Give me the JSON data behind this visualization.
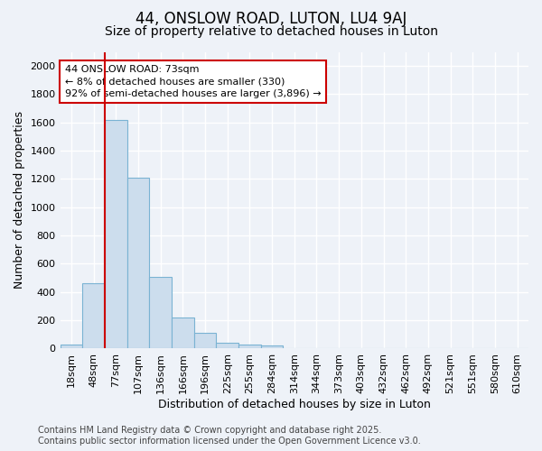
{
  "title": "44, ONSLOW ROAD, LUTON, LU4 9AJ",
  "subtitle": "Size of property relative to detached houses in Luton",
  "xlabel": "Distribution of detached houses by size in Luton",
  "ylabel": "Number of detached properties",
  "categories": [
    "18sqm",
    "48sqm",
    "77sqm",
    "107sqm",
    "136sqm",
    "166sqm",
    "196sqm",
    "225sqm",
    "255sqm",
    "284sqm",
    "314sqm",
    "344sqm",
    "373sqm",
    "403sqm",
    "432sqm",
    "462sqm",
    "492sqm",
    "521sqm",
    "551sqm",
    "580sqm",
    "610sqm"
  ],
  "values": [
    30,
    460,
    1620,
    1210,
    510,
    220,
    110,
    40,
    30,
    20,
    0,
    0,
    0,
    0,
    0,
    0,
    0,
    0,
    0,
    0,
    0
  ],
  "bar_color": "#ccdded",
  "bar_edge_color": "#7ab3d3",
  "vertical_line_color": "#cc0000",
  "annotation_text": "44 ONSLOW ROAD: 73sqm\n← 8% of detached houses are smaller (330)\n92% of semi-detached houses are larger (3,896) →",
  "annotation_box_edgecolor": "#cc0000",
  "ylim": [
    0,
    2100
  ],
  "yticks": [
    0,
    200,
    400,
    600,
    800,
    1000,
    1200,
    1400,
    1600,
    1800,
    2000
  ],
  "background_color": "#eef2f8",
  "grid_color": "#ffffff",
  "footer_line1": "Contains HM Land Registry data © Crown copyright and database right 2025.",
  "footer_line2": "Contains public sector information licensed under the Open Government Licence v3.0.",
  "title_fontsize": 12,
  "subtitle_fontsize": 10,
  "axis_label_fontsize": 9,
  "tick_fontsize": 8,
  "annotation_fontsize": 8,
  "footer_fontsize": 7,
  "vline_xindex": 2
}
